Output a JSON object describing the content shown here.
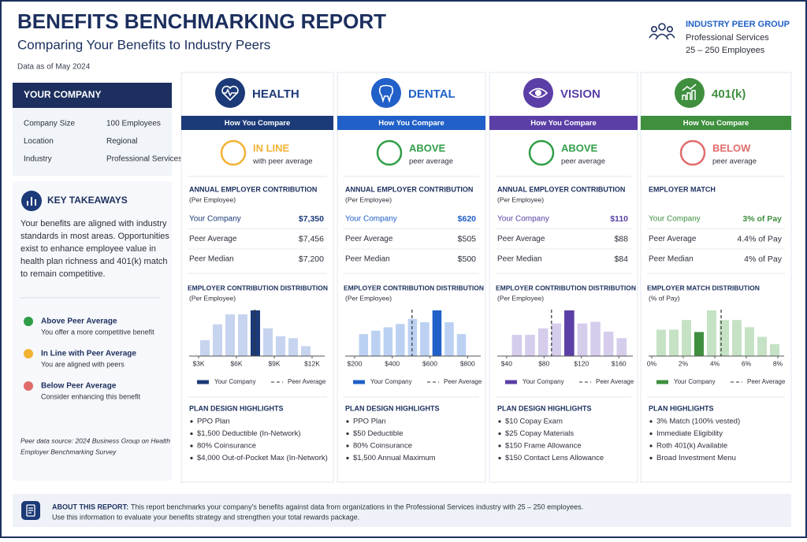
{
  "header": {
    "title": "BENEFITS BENCHMARKING REPORT",
    "subtitle": "Comparing Your Benefits to Industry Peers",
    "date": "Data as of May 2024"
  },
  "peer_group": {
    "heading": "INDUSTRY PEER GROUP",
    "industry": "Professional Services",
    "size": "25 – 250 Employees"
  },
  "company": {
    "heading": "YOUR COMPANY",
    "rows": [
      [
        "Company Size",
        "100 Employees"
      ],
      [
        "Location",
        "Regional"
      ],
      [
        "Industry",
        "Professional Services"
      ]
    ]
  },
  "takeaways": {
    "heading": "KEY TAKEAWAYS",
    "lines": [
      "Your benefits are aligned with industry",
      "standards in most areas. Opportunities",
      "exist to enhance employee value in",
      "health plan richness and 401(k) match",
      "to remain competitive."
    ]
  },
  "legend": [
    {
      "label": "Above Peer Average",
      "description": "You offer a more competitive benefit",
      "color": "#2f9e47"
    },
    {
      "label": "In Line with Peer Average",
      "description": "You are aligned with peers",
      "color": "#f2b233"
    },
    {
      "label": "Below Peer Average",
      "description": "Consider enhancing this benefit",
      "color": "#e06b6b"
    }
  ],
  "source_note": [
    "Peer data source: 2024 Business Group on Health",
    "Employer Benchmarking Survey"
  ],
  "columns": [
    {
      "name": "HEALTH",
      "color": "#1c3a78",
      "light_color": "#c6d4ef",
      "compare_heading": "How You Compare",
      "status": {
        "label": "IN LINE",
        "note": "with peer average",
        "color": "#f2b233"
      },
      "metrics": {
        "heading": "ANNUAL EMPLOYER CONTRIBUTION",
        "subheading": "(Per Employee)",
        "rows": [
          {
            "label": "Your Company",
            "value": {
              "value": 7350,
              "label": "$7,350"
            }
          },
          {
            "label": "Peer Average",
            "value": {
              "value": 7456,
              "label": "$7,456"
            }
          },
          {
            "label": "Peer Median",
            "value": {
              "value": 7200,
              "label": "$7,200"
            }
          }
        ]
      },
      "distribution": {
        "heading": "EMPLOYER CONTRIBUTION DISTRIBUTION",
        "subheading": "(Per Employee)",
        "xlim": [
          2250,
          13000
        ],
        "xticks": [
          {
            "value": 3000,
            "label": "$3K"
          },
          {
            "value": 6000,
            "label": "$6K"
          },
          {
            "value": 9000,
            "label": "$9K"
          },
          {
            "value": 12000,
            "label": "$12K"
          }
        ],
        "bins": [
          3000,
          4000,
          5000,
          6000,
          7000,
          8000,
          9000,
          10000,
          11000,
          12000
        ],
        "counts": [
          16,
          32,
          42,
          42,
          46,
          28,
          20,
          18,
          10
        ],
        "legend_company": "Your Company",
        "legend_peer": "Peer Average"
      },
      "highlights": {
        "heading": "PLAN DESIGN HIGHLIGHTS",
        "items": [
          "PPO Plan",
          "$1,500 Deductible (In-Network)",
          "80% Coinsurance",
          "$4,000 Out-of-Pocket Max (In-Network)"
        ]
      }
    },
    {
      "name": "DENTAL",
      "color": "#2060c8",
      "light_color": "#bcd1f2",
      "compare_heading": "How You Compare",
      "status": {
        "label": "ABOVE",
        "note": "peer average",
        "color": "#2f9e47"
      },
      "metrics": {
        "heading": "ANNUAL EMPLOYER CONTRIBUTION",
        "subheading": "(Per Employee)",
        "rows": [
          {
            "label": "Your Company",
            "value": {
              "value": 620,
              "label": "$620"
            }
          },
          {
            "label": "Peer Average",
            "value": {
              "value": 505,
              "label": "$505"
            }
          },
          {
            "label": "Peer Median",
            "value": {
              "value": 500,
              "label": "$500"
            }
          }
        ]
      },
      "distribution": {
        "heading": "EMPLOYER CONTRIBUTION DISTRIBUTION",
        "subheading": "(Per Employee)",
        "xlim": [
          150,
          870
        ],
        "xticks": [
          {
            "value": 200,
            "label": "$200"
          },
          {
            "value": 400,
            "label": "$400"
          },
          {
            "value": 600,
            "label": "$600"
          },
          {
            "value": 800,
            "label": "$800"
          }
        ],
        "bins": [
          215,
          280,
          345,
          410,
          475,
          540,
          605,
          670,
          735,
          800
        ],
        "counts": [
          26,
          30,
          34,
          38,
          44,
          40,
          54,
          40,
          26
        ],
        "legend_company": "Your Company",
        "legend_peer": "Peer Average"
      },
      "highlights": {
        "heading": "PLAN DESIGN HIGHLIGHTS",
        "items": [
          "PPO Plan",
          "$50 Deductible",
          "80% Coinsurance",
          "$1,500 Annual Maximum"
        ]
      }
    },
    {
      "name": "VISION",
      "color": "#5b3fa6",
      "light_color": "#d6cdec",
      "compare_heading": "How You Compare",
      "status": {
        "label": "ABOVE",
        "note": "peer average",
        "color": "#2f9e47"
      },
      "metrics": {
        "heading": "ANNUAL EMPLOYER CONTRIBUTION",
        "subheading": "(Per Employee)",
        "rows": [
          {
            "label": "Your Company",
            "value": {
              "value": 110,
              "label": "$110"
            }
          },
          {
            "label": "Peer Average",
            "value": {
              "value": 88,
              "label": "$88"
            }
          },
          {
            "label": "Peer Median",
            "value": {
              "value": 84,
              "label": "$84"
            }
          }
        ]
      },
      "distribution": {
        "heading": "EMPLOYER CONTRIBUTION DISTRIBUTION",
        "subheading": "(Per Employee)",
        "xlim": [
          30,
          175
        ],
        "xticks": [
          {
            "value": 40,
            "label": "$40"
          },
          {
            "value": 80,
            "label": "$80"
          },
          {
            "value": 120,
            "label": "$120"
          },
          {
            "value": 160,
            "label": "$160"
          }
        ],
        "bins": [
          44,
          58,
          72,
          86,
          100,
          114,
          128,
          142,
          156,
          170
        ],
        "counts": [
          26,
          26,
          34,
          40,
          56,
          40,
          42,
          30,
          22
        ],
        "legend_company": "Your Company",
        "legend_peer": "Peer Average"
      },
      "highlights": {
        "heading": "PLAN DESIGN HIGHLIGHTS",
        "items": [
          "$10 Copay Exam",
          "$25 Copay Materials",
          "$150 Frame Allowance",
          "$150 Contact Lens Allowance"
        ]
      }
    },
    {
      "name": "401(k)",
      "color": "#3f8f3f",
      "light_color": "#c5e2c5",
      "compare_heading": "How You Compare",
      "status": {
        "label": "BELOW",
        "note": "peer average",
        "color": "#e06b6b"
      },
      "metrics": {
        "heading": "EMPLOYER MATCH",
        "subheading": null,
        "rows": [
          {
            "label": "Your Company",
            "value": {
              "value": 3,
              "label": "3% of Pay"
            }
          },
          {
            "label": "Peer Average",
            "value": {
              "value": 4.4,
              "label": "4.4% of Pay"
            }
          },
          {
            "label": "Peer Median",
            "value": {
              "value": 4,
              "label": "4% of Pay"
            }
          }
        ]
      },
      "distribution": {
        "heading": "EMPLOYER MATCH DISTRIBUTION",
        "subheading": "(% of Pay)",
        "xlim": [
          -0.2,
          8.4
        ],
        "xticks": [
          {
            "value": 0,
            "label": "0%"
          },
          {
            "value": 2,
            "label": "2%"
          },
          {
            "value": 4,
            "label": "4%"
          },
          {
            "value": 6,
            "label": "6%"
          },
          {
            "value": 8,
            "label": "8%"
          }
        ],
        "bins": [
          0.2,
          1.0,
          1.8,
          2.6,
          3.4,
          4.2,
          5.0,
          5.8,
          6.6,
          7.4,
          8.2
        ],
        "counts": [
          22,
          22,
          30,
          20,
          38,
          30,
          30,
          24,
          16,
          10
        ],
        "legend_company": "Your Company",
        "legend_peer": "Peer Average"
      },
      "highlights": {
        "heading": "PLAN HIGHLIGHTS",
        "items": [
          "3% Match (100% vested)",
          "Immediate Eligibility",
          "Roth 401(k) Available",
          "Broad Investment Menu"
        ]
      }
    }
  ],
  "footer": {
    "heading": "ABOUT THIS REPORT:",
    "text": "This report benchmarks your company’s benefits against data from organizations in the Professional Services industry with 25 – 250 employees.",
    "line2": "Use this information to evaluate your benefits strategy and strengthen your total rewards package."
  }
}
